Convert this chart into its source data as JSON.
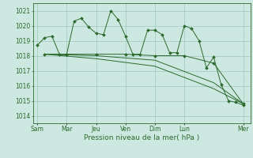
{
  "background_color": "#cce8e0",
  "grid_color": "#9ec8be",
  "line_color": "#2d6a2d",
  "marker_color": "#2d6a2d",
  "xlabel": "Pression niveau de la mer( hPa )",
  "ylim": [
    1013.5,
    1021.5
  ],
  "yticks": [
    1014,
    1015,
    1016,
    1017,
    1018,
    1019,
    1020,
    1021
  ],
  "x_day_labels": [
    "Sam",
    "Mar",
    "Jeu",
    "Ven",
    "Dim",
    "Lun",
    "Mer"
  ],
  "x_day_positions": [
    0,
    2,
    4,
    6,
    8,
    10,
    14
  ],
  "xlim": [
    -0.3,
    14.5
  ],
  "series1": {
    "x": [
      0,
      0.5,
      1,
      1.5,
      2,
      2.5,
      3,
      3.5,
      4,
      4.5,
      5,
      5.5,
      6,
      6.5,
      7,
      7.5,
      8,
      8.5,
      9,
      9.5,
      10,
      10.5,
      11,
      11.5,
      12,
      12.5,
      13,
      13.5,
      14
    ],
    "y": [
      1018.7,
      1019.2,
      1019.3,
      1018.1,
      1018.1,
      1020.3,
      1020.5,
      1019.9,
      1019.5,
      1019.4,
      1021.0,
      1020.4,
      1019.3,
      1018.1,
      1018.1,
      1019.7,
      1019.7,
      1019.4,
      1018.2,
      1018.2,
      1020.0,
      1019.8,
      1019.0,
      1017.2,
      1017.9,
      1016.1,
      1015.0,
      1014.9,
      1014.7
    ]
  },
  "series2": {
    "x": [
      0.5,
      2,
      4,
      6,
      8,
      10,
      12,
      14
    ],
    "y": [
      1018.1,
      1018.1,
      1018.1,
      1018.1,
      1018.0,
      1018.0,
      1017.5,
      1014.8
    ]
  },
  "series3": {
    "x": [
      0.5,
      4,
      8,
      12,
      14
    ],
    "y": [
      1018.1,
      1018.0,
      1017.7,
      1016.2,
      1014.8
    ]
  },
  "series4": {
    "x": [
      0.5,
      4,
      8,
      12,
      14
    ],
    "y": [
      1018.1,
      1017.8,
      1017.3,
      1015.8,
      1014.8
    ]
  }
}
